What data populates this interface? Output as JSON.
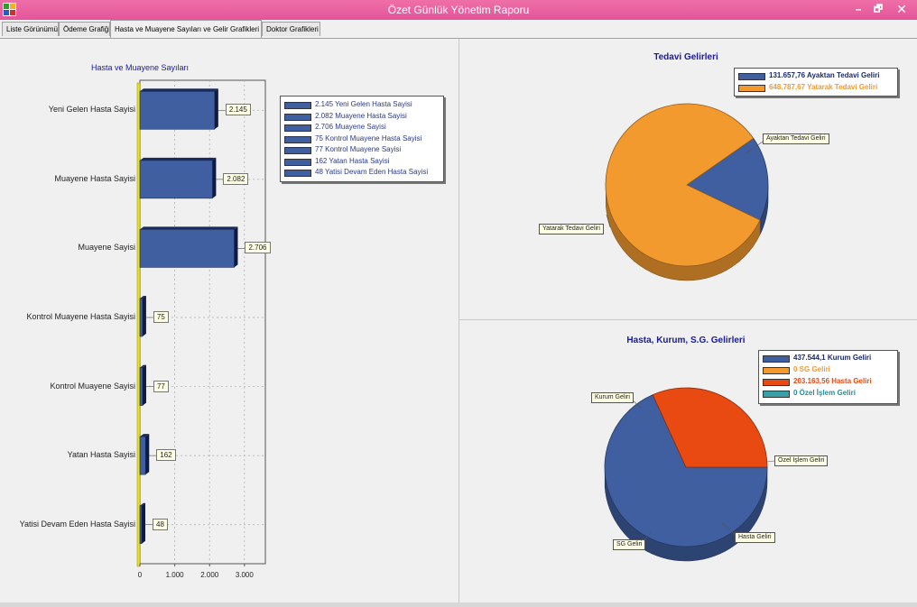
{
  "window": {
    "title": "Özet Günlük Yönetim Raporu",
    "min_label": "–",
    "max_label": "🗗",
    "close_label": "✕"
  },
  "tabs": [
    {
      "label": "Liste Görünümü",
      "active": false
    },
    {
      "label": "Ödeme Grafiği",
      "active": false
    },
    {
      "label": "Hasta ve Muayene Sayıları ve Gelir Grafikleri",
      "active": true
    },
    {
      "label": "Doktor Grafikleri",
      "active": false
    }
  ],
  "colors": {
    "bar": "#3f5fa0",
    "blue": "#3f5fa0",
    "orange": "#f39a2f",
    "red": "#e84a12",
    "teal": "#3aa0a8"
  },
  "bar_chart": {
    "title": "Hasta ve Muayene Sayıları",
    "legend": [
      "2.145 Yeni Gelen Hasta Sayisi",
      "2.082 Muayene Hasta Sayisi",
      "2.706 Muayene Sayisi",
      "75 Kontrol Muayene Hasta Sayisi",
      "77 Kontrol Muayene Sayisi",
      "162 Yatan Hasta Sayisi",
      "48 Yatisi Devam Eden Hasta Sayisi"
    ]
  },
  "pie_top": {
    "title": "Tedavi Gelirleri",
    "legend": [
      {
        "text": "131.657,76 Ayaktan Tedavi Geliri",
        "color": "#3f5fa0",
        "text_color": "#1a2a6a"
      },
      {
        "text": "648.787,67 Yatarak Tedavi Geliri",
        "color": "#f39a2f",
        "text_color": "#f39a2f"
      }
    ],
    "slice_labels": [
      "Ayaktan Tedavi Geliri",
      "Yatarak Tedavi Geliri"
    ]
  },
  "pie_bottom": {
    "title": "Hasta, Kurum, S.G. Gelirleri",
    "legend": [
      {
        "text": "437.544,1 Kurum Geliri",
        "color": "#3f5fa0",
        "text_color": "#1a2a6a"
      },
      {
        "text": "0 SG Geliri",
        "color": "#f39a2f",
        "text_color": "#f39a2f"
      },
      {
        "text": "203.163,56 Hasta Geliri",
        "color": "#e84a12",
        "text_color": "#e84a12"
      },
      {
        "text": "0 Özel İşlem Geliri",
        "color": "#3aa0a8",
        "text_color": "#2a8a94"
      }
    ],
    "slice_labels": [
      "Kurum Geliri",
      "Özel İşlem Geliri",
      "Hasta Geliri",
      "SG Geliri"
    ]
  },
  "chart_data": [
    {
      "type": "bar",
      "orientation": "horizontal",
      "title": "Hasta ve Muayene Sayıları",
      "categories": [
        "Yeni Gelen Hasta Sayisi",
        "Muayene Hasta Sayisi",
        "Muayene Sayisi",
        "Kontrol Muayene Hasta Sayisi",
        "Kontrol Muayene Sayisi",
        "Yatan Hasta Sayisi",
        "Yatisi Devam Eden Hasta Sayisi"
      ],
      "values": [
        2145,
        2082,
        2706,
        75,
        77,
        162,
        48
      ],
      "value_labels": [
        "2.145",
        "2.082",
        "2.706",
        "75",
        "77",
        "162",
        "48"
      ],
      "xlim": [
        0,
        3600
      ],
      "x_ticks": [
        0,
        1000,
        2000,
        3000
      ],
      "x_tick_labels": [
        "0",
        "1.000",
        "2.000",
        "3.000"
      ],
      "grid": true,
      "legend_position": "right"
    },
    {
      "type": "pie",
      "title": "Tedavi Gelirleri",
      "labels": [
        "Ayaktan Tedavi Geliri",
        "Yatarak Tedavi Geliri"
      ],
      "values": [
        131657.76,
        648787.67
      ],
      "colors": [
        "#3f5fa0",
        "#f39a2f"
      ],
      "legend_position": "top-right"
    },
    {
      "type": "pie",
      "title": "Hasta, Kurum, S.G. Gelirleri",
      "labels": [
        "Kurum Geliri",
        "SG Geliri",
        "Hasta Geliri",
        "Özel İşlem Geliri"
      ],
      "values": [
        437544.1,
        0,
        203163.56,
        0
      ],
      "colors": [
        "#3f5fa0",
        "#f39a2f",
        "#e84a12",
        "#3aa0a8"
      ],
      "legend_position": "top-right"
    }
  ]
}
